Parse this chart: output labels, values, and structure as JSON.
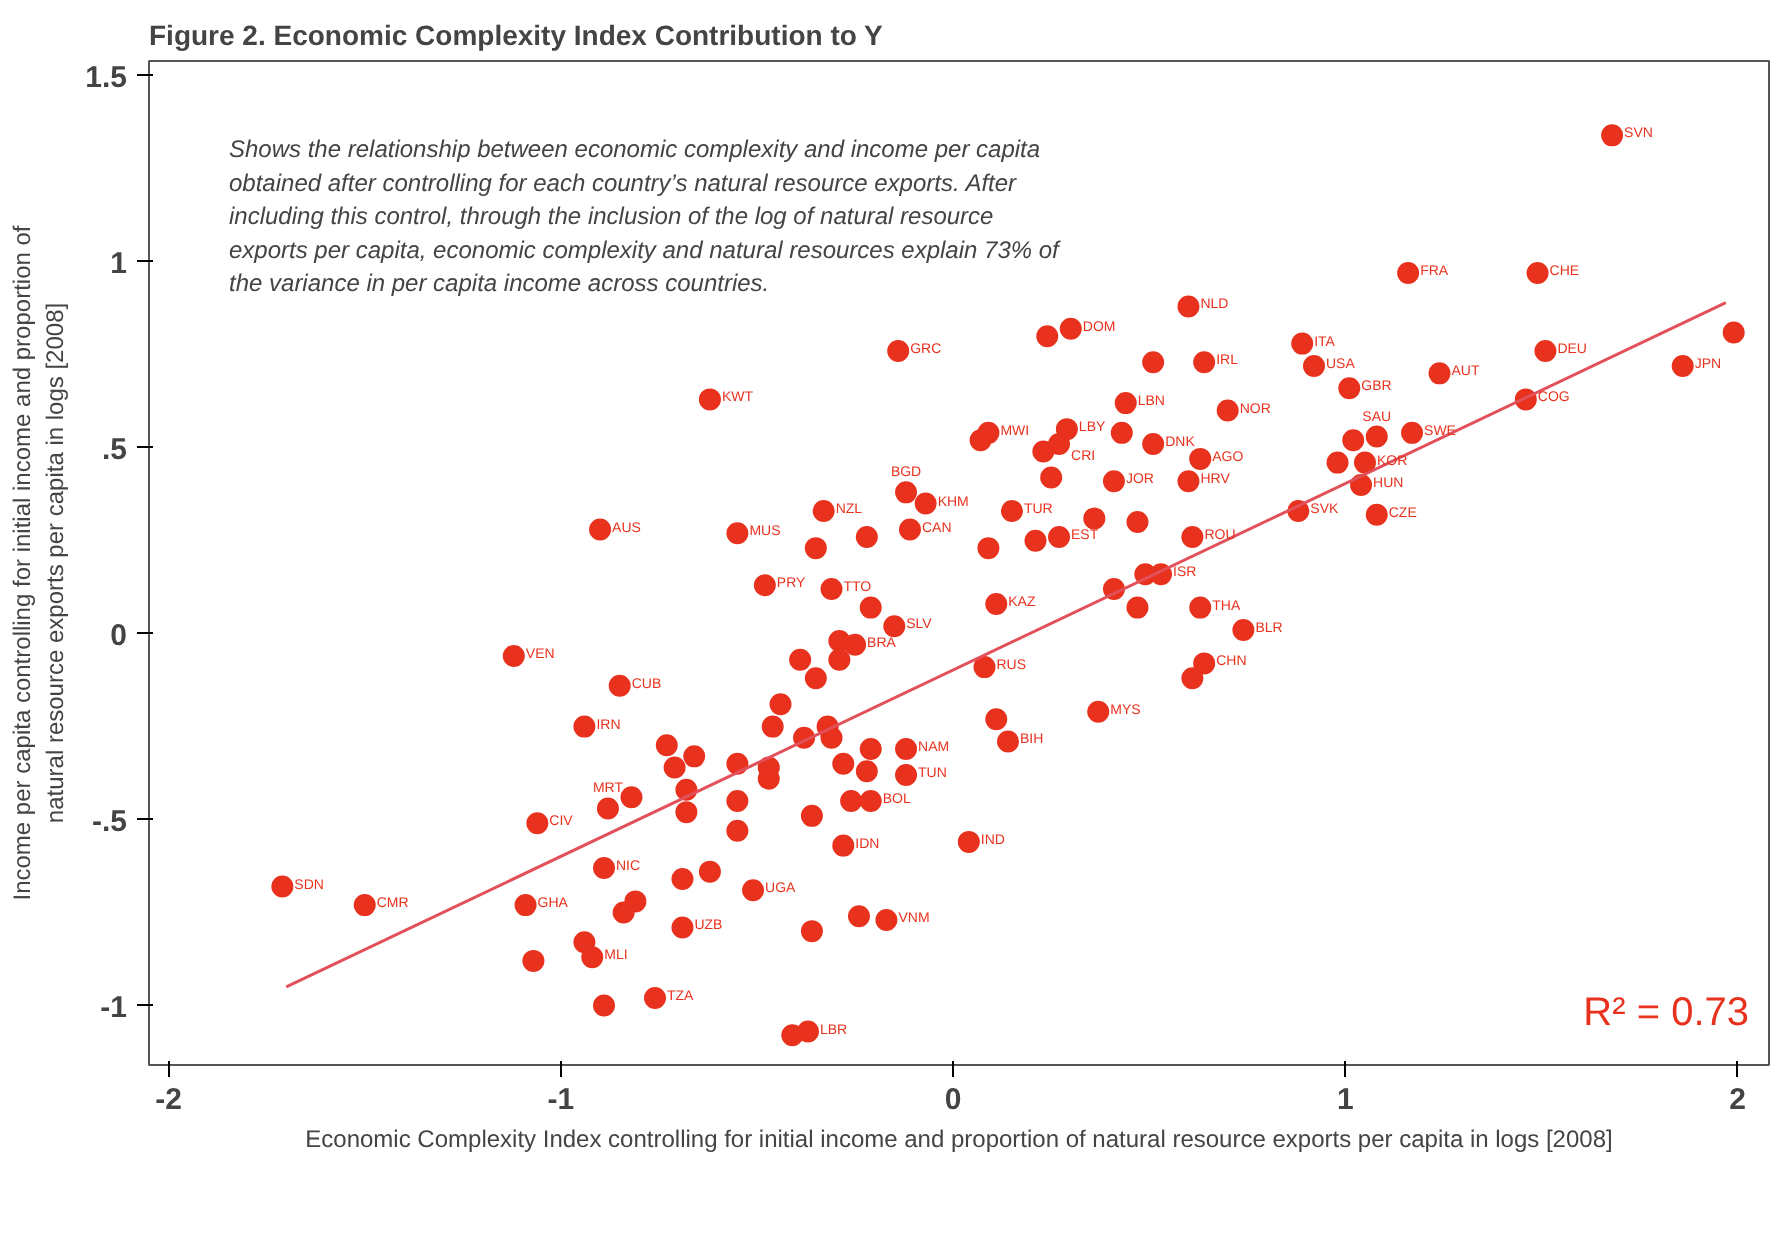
{
  "chart_data": {
    "type": "scatter",
    "title": "Figure 2. Economic Complexity Index Contribution to Y",
    "xlabel": "Economic Complexity Index controlling for initial income and proportion of natural resource exports per capita in logs [2008]",
    "ylabel": "Income per capita controlling for initial income and proportion of\nnatural resource exports per capita in logs [2008]",
    "xlim": [
      -2.05,
      2.08
    ],
    "ylim": [
      -1.16,
      1.54
    ],
    "xticks": [
      -2,
      -1,
      0,
      1,
      2
    ],
    "yticks": [
      {
        "value": -1,
        "label": "-1"
      },
      {
        "value": -0.5,
        "label": "-.5"
      },
      {
        "value": 0,
        "label": "0"
      },
      {
        "value": 0.5,
        "label": ".5"
      },
      {
        "value": 1,
        "label": "1"
      },
      {
        "value": 1.5,
        "label": "1.5"
      }
    ],
    "grid": false,
    "series": [
      {
        "color": "#e8321e",
        "marker": "circle",
        "x": [
          1.68,
          1.16,
          1.49,
          1.99,
          1.51,
          1.86,
          1.24,
          1.46,
          0.89,
          0.92,
          1.01,
          1.02,
          1.08,
          1.17,
          0.98,
          1.05,
          1.04,
          0.88,
          1.08,
          0.6,
          0.3,
          0.24,
          -0.14,
          0.51,
          0.64,
          -0.62,
          0.44,
          0.7,
          0.09,
          0.07,
          0.29,
          0.27,
          0.23,
          0.43,
          0.51,
          0.63,
          0.25,
          0.41,
          0.6,
          -0.12,
          -0.07,
          -0.33,
          0.15,
          0.36,
          0.47,
          -0.55,
          -0.11,
          -0.22,
          -0.35,
          0.61,
          0.09,
          0.21,
          0.27,
          -0.48,
          -0.31,
          0.49,
          0.53,
          -0.21,
          -0.15,
          0.11,
          0.41,
          0.47,
          0.63,
          0.74,
          -0.29,
          -0.25,
          -0.39,
          0.08,
          0.64,
          0.61,
          -0.9,
          -1.12,
          -0.85,
          -0.94,
          -0.73,
          -0.71,
          -0.66,
          -0.82,
          -0.88,
          -1.06,
          -1.71,
          -1.5,
          -0.89,
          -0.69,
          -0.62,
          -1.09,
          -0.84,
          -0.81,
          -0.94,
          -0.92,
          -1.07,
          -0.76,
          -0.89,
          -0.69,
          -0.44,
          -0.46,
          -0.35,
          -0.29,
          -0.32,
          -0.31,
          -0.38,
          -0.55,
          -0.47,
          -0.47,
          -0.28,
          -0.21,
          -0.12,
          -0.22,
          -0.12,
          -0.26,
          -0.21,
          -0.55,
          -0.36,
          -0.55,
          -0.68,
          -0.68,
          -0.28,
          0.04,
          0.11,
          0.14,
          0.37,
          -0.51,
          -0.24,
          -0.17,
          -0.36,
          -0.41,
          -0.37
        ],
        "values": [
          1.34,
          0.97,
          0.97,
          0.81,
          0.76,
          0.72,
          0.7,
          0.63,
          0.78,
          0.72,
          0.66,
          0.52,
          0.53,
          0.54,
          0.46,
          0.46,
          0.4,
          0.33,
          0.32,
          0.88,
          0.82,
          0.8,
          0.76,
          0.73,
          0.73,
          0.63,
          0.62,
          0.6,
          0.54,
          0.52,
          0.55,
          0.51,
          0.49,
          0.54,
          0.51,
          0.47,
          0.42,
          0.41,
          0.41,
          0.38,
          0.35,
          0.33,
          0.33,
          0.31,
          0.3,
          0.27,
          0.28,
          0.26,
          0.23,
          0.26,
          0.23,
          0.25,
          0.26,
          0.13,
          0.12,
          0.16,
          0.16,
          0.07,
          0.02,
          0.08,
          0.12,
          0.07,
          0.07,
          0.01,
          -0.02,
          -0.03,
          -0.07,
          -0.09,
          -0.08,
          -0.12,
          0.28,
          -0.06,
          -0.14,
          -0.25,
          -0.3,
          -0.36,
          -0.33,
          -0.44,
          -0.47,
          -0.51,
          -0.68,
          -0.73,
          -0.63,
          -0.66,
          -0.64,
          -0.73,
          -0.75,
          -0.72,
          -0.83,
          -0.87,
          -0.88,
          -0.98,
          -1.0,
          -0.79,
          -0.19,
          -0.25,
          -0.12,
          -0.07,
          -0.25,
          -0.28,
          -0.28,
          -0.35,
          -0.36,
          -0.39,
          -0.35,
          -0.31,
          -0.31,
          -0.37,
          -0.38,
          -0.45,
          -0.45,
          -0.45,
          -0.49,
          -0.53,
          -0.42,
          -0.48,
          -0.57,
          -0.56,
          -0.23,
          -0.29,
          -0.21,
          -0.69,
          -0.76,
          -0.77,
          -0.8,
          -1.08,
          -1.07
        ]
      },
      {
        "type": "line",
        "marker": "none",
        "color": "#e2505a",
        "x": [
          -1.7,
          1.97
        ],
        "values": [
          -0.95,
          0.89
        ]
      }
    ],
    "annotations": [
      "Shows the relationship between economic complexity and income per capita\nobtained after controlling for each country’s natural resource exports. After\nincluding this control, through the inclusion of the log of natural resource\nexports per capita, economic complexity and natural resources explain 73% of\nthe variance in per capita income across countries.",
      "R² = 0.73",
      {
        "text": "SVN",
        "x": 1.68,
        "y": 1.34
      },
      {
        "text": "FRA",
        "x": 1.16,
        "y": 0.97
      },
      {
        "text": "CHE",
        "x": 1.49,
        "y": 0.97
      },
      {
        "text": "DEU",
        "x": 1.51,
        "y": 0.76
      },
      {
        "text": "JPN",
        "x": 1.86,
        "y": 0.72
      },
      {
        "text": "AUT",
        "x": 1.24,
        "y": 0.7
      },
      {
        "text": "COG",
        "x": 1.46,
        "y": 0.63
      },
      {
        "text": "ITA",
        "x": 0.89,
        "y": 0.78
      },
      {
        "text": "USA",
        "x": 0.92,
        "y": 0.72
      },
      {
        "text": "GBR",
        "x": 1.01,
        "y": 0.66
      },
      {
        "text": "SAU",
        "x": 1.08,
        "y": 0.53
      },
      {
        "text": "SWE",
        "x": 1.17,
        "y": 0.54
      },
      {
        "text": "KOR",
        "x": 1.05,
        "y": 0.46
      },
      {
        "text": "HUN",
        "x": 1.04,
        "y": 0.4
      },
      {
        "text": "SVK",
        "x": 0.88,
        "y": 0.33
      },
      {
        "text": "CZE",
        "x": 1.08,
        "y": 0.32
      },
      {
        "text": "NLD",
        "x": 0.6,
        "y": 0.88
      },
      {
        "text": "DOM",
        "x": 0.3,
        "y": 0.82
      },
      {
        "text": "GRC",
        "x": -0.14,
        "y": 0.76
      },
      {
        "text": "IRL",
        "x": 0.64,
        "y": 0.73
      },
      {
        "text": "KWT",
        "x": -0.62,
        "y": 0.63
      },
      {
        "text": "LBN",
        "x": 0.44,
        "y": 0.62
      },
      {
        "text": "NOR",
        "x": 0.7,
        "y": 0.6
      },
      {
        "text": "MWI",
        "x": 0.09,
        "y": 0.54
      },
      {
        "text": "LBY",
        "x": 0.29,
        "y": 0.55
      },
      {
        "text": "CRI",
        "x": 0.27,
        "y": 0.51
      },
      {
        "text": "DNK",
        "x": 0.51,
        "y": 0.51
      },
      {
        "text": "AGO",
        "x": 0.63,
        "y": 0.47
      },
      {
        "text": "JOR",
        "x": 0.41,
        "y": 0.41
      },
      {
        "text": "HRV",
        "x": 0.6,
        "y": 0.41
      },
      {
        "text": "BGD",
        "x": -0.12,
        "y": 0.38
      },
      {
        "text": "KHM",
        "x": -0.07,
        "y": 0.35
      },
      {
        "text": "NZL",
        "x": -0.33,
        "y": 0.33
      },
      {
        "text": "TUR",
        "x": 0.15,
        "y": 0.33
      },
      {
        "text": "MUS",
        "x": -0.55,
        "y": 0.27
      },
      {
        "text": "CAN",
        "x": -0.11,
        "y": 0.28
      },
      {
        "text": "ROU",
        "x": 0.61,
        "y": 0.26
      },
      {
        "text": "EST",
        "x": 0.27,
        "y": 0.26
      },
      {
        "text": "PRY",
        "x": -0.48,
        "y": 0.13
      },
      {
        "text": "TTO",
        "x": -0.31,
        "y": 0.12
      },
      {
        "text": "ISR",
        "x": 0.53,
        "y": 0.16
      },
      {
        "text": "SLV",
        "x": -0.15,
        "y": 0.02
      },
      {
        "text": "KAZ",
        "x": 0.11,
        "y": 0.08
      },
      {
        "text": "THA",
        "x": 0.63,
        "y": 0.07
      },
      {
        "text": "BLR",
        "x": 0.74,
        "y": 0.01
      },
      {
        "text": "BRA",
        "x": -0.25,
        "y": -0.03
      },
      {
        "text": "RUS",
        "x": 0.08,
        "y": -0.09
      },
      {
        "text": "CHN",
        "x": 0.64,
        "y": -0.08
      },
      {
        "text": "AUS",
        "x": -0.9,
        "y": 0.28
      },
      {
        "text": "VEN",
        "x": -1.12,
        "y": -0.06
      },
      {
        "text": "CUB",
        "x": -0.85,
        "y": -0.14
      },
      {
        "text": "IRN",
        "x": -0.94,
        "y": -0.25
      },
      {
        "text": "SDN",
        "x": -1.71,
        "y": -0.68
      },
      {
        "text": "CMR",
        "x": -1.5,
        "y": -0.73
      },
      {
        "text": "CIV",
        "x": -1.06,
        "y": -0.51
      },
      {
        "text": "MRT",
        "x": -0.88,
        "y": -0.47
      },
      {
        "text": "NIC",
        "x": -0.89,
        "y": -0.63
      },
      {
        "text": "GHA",
        "x": -1.09,
        "y": -0.73
      },
      {
        "text": "MLI",
        "x": -0.92,
        "y": -0.87
      },
      {
        "text": "TZA",
        "x": -0.76,
        "y": -0.98
      },
      {
        "text": "UZB",
        "x": -0.69,
        "y": -0.79
      },
      {
        "text": "UGA",
        "x": -0.51,
        "y": -0.69
      },
      {
        "text": "IDN",
        "x": -0.28,
        "y": -0.57
      },
      {
        "text": "IND",
        "x": 0.04,
        "y": -0.56
      },
      {
        "text": "BIH",
        "x": 0.14,
        "y": -0.29
      },
      {
        "text": "MYS",
        "x": 0.37,
        "y": -0.21
      },
      {
        "text": "NAM",
        "x": -0.12,
        "y": -0.31
      },
      {
        "text": "TUN",
        "x": -0.12,
        "y": -0.38
      },
      {
        "text": "BOL",
        "x": -0.21,
        "y": -0.45
      },
      {
        "text": "VNM",
        "x": -0.17,
        "y": -0.77
      },
      {
        "text": "LBR",
        "x": -0.37,
        "y": -1.07
      }
    ]
  }
}
